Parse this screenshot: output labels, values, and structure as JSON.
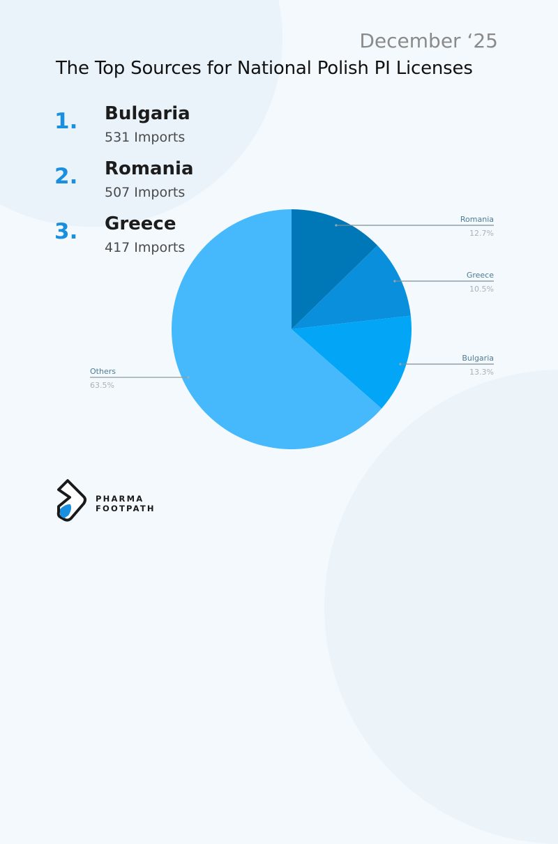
{
  "header": {
    "date": "December ‘25",
    "title": "The Top Sources for National Polish PI Licenses"
  },
  "ranking": [
    {
      "rank": "1.",
      "country": "Bulgaria",
      "imports": "531 Imports"
    },
    {
      "rank": "2.",
      "country": "Romania",
      "imports": "507 Imports"
    },
    {
      "rank": "3.",
      "country": "Greece",
      "imports": "417 Imports"
    }
  ],
  "colors": {
    "accent": "#1a8fe0",
    "romania": "#0077b7",
    "greece": "#0a8fdc",
    "bulgaria": "#03a5f7",
    "others": "#45b9fc",
    "background": "#f3f9fd"
  },
  "chart_data": {
    "type": "pie",
    "title": "The Top Sources for National Polish PI Licenses",
    "subtitle": "December ‘25",
    "categories": [
      "Romania",
      "Greece",
      "Bulgaria",
      "Others"
    ],
    "values": [
      12.7,
      10.5,
      13.3,
      63.5
    ],
    "labels": [
      "12.7%",
      "10.5%",
      "13.3%",
      "63.5%"
    ],
    "start_angle": "12 o'clock, clockwise",
    "legend": "none (leader-line labels)"
  },
  "logo": {
    "line1": "PHARMA",
    "line2": "FOOTPATH"
  }
}
